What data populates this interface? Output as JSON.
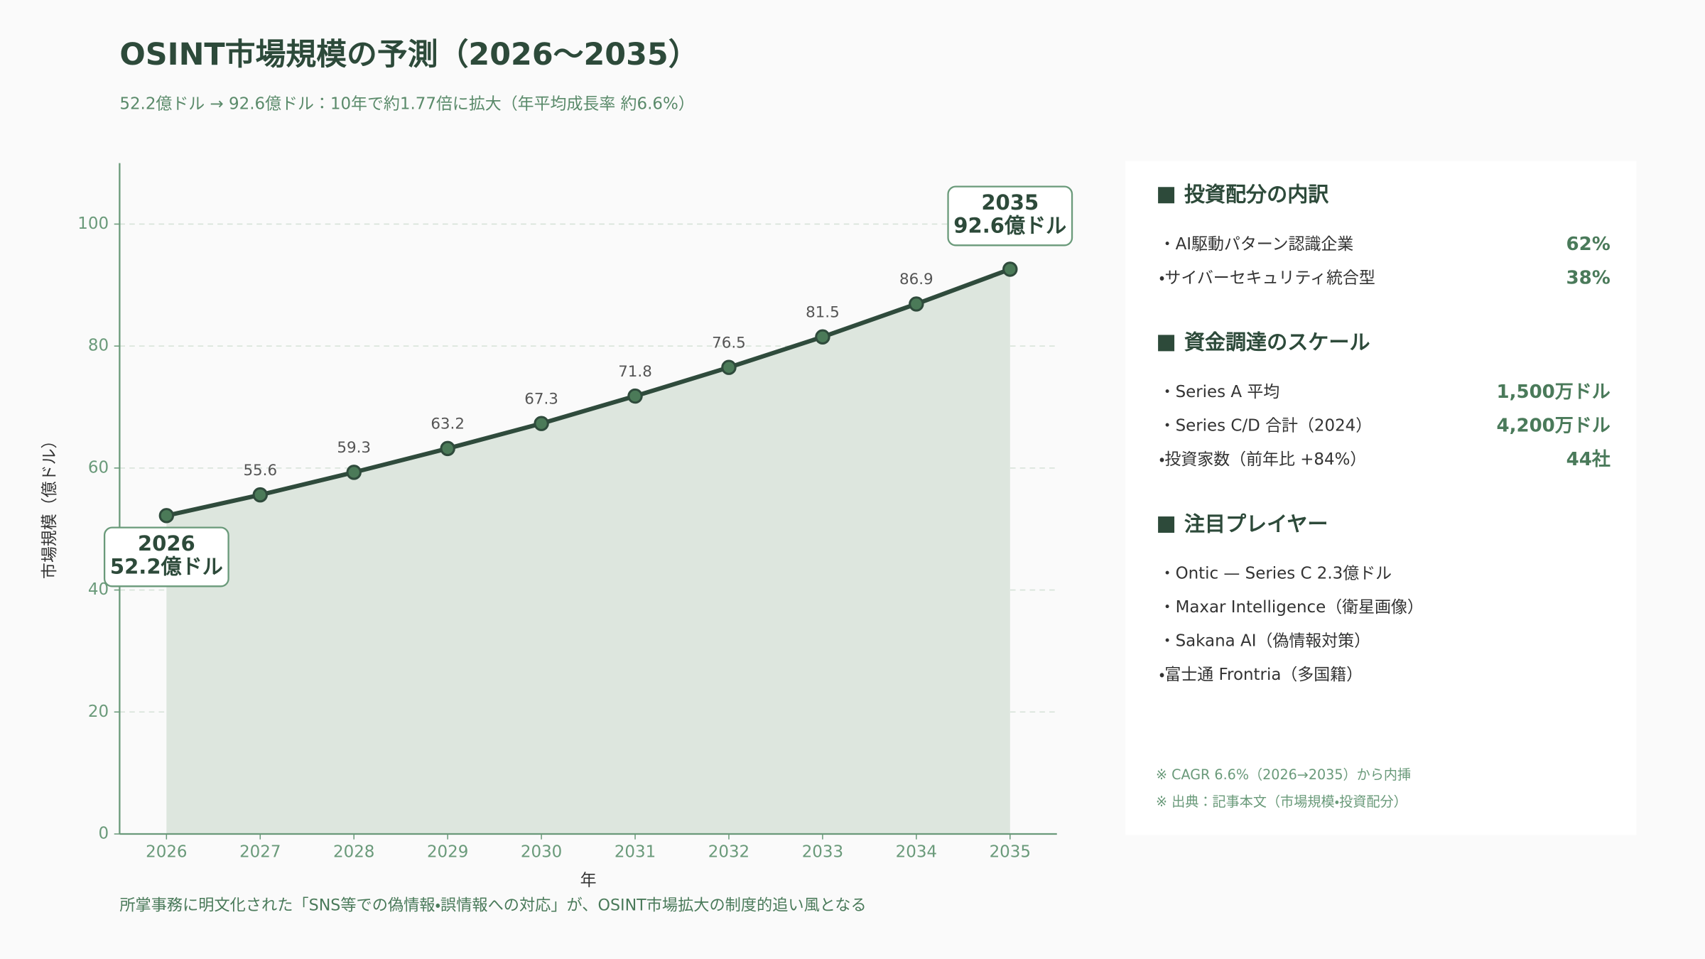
{
  "chart_data": {
    "type": "line",
    "title": "OSINT市場規模の予測（2026〜2035）",
    "subtitle": "52.2億ドル → 92.6億ドル：10年で約1.77倍に拡大（年平均成長率 約6.6%）",
    "x_label": "年",
    "y_label": "市場規模（億ドル）",
    "caption": "所掌事務に明文化された「SNS等での偽情報・誤情報への対応」が、OSINT市場拡大の制度的追い風となる",
    "categories": [
      "2026",
      "2027",
      "2028",
      "2029",
      "2030",
      "2031",
      "2032",
      "2033",
      "2034",
      "2035"
    ],
    "values": [
      52.2,
      55.6,
      59.3,
      63.2,
      67.3,
      71.8,
      76.5,
      81.5,
      86.9,
      92.6
    ],
    "value_labels": [
      "52.2億ドル",
      "55.6",
      "59.3",
      "63.2",
      "67.3",
      "71.8",
      "76.5",
      "81.5",
      "86.9",
      "92.6億ドル"
    ],
    "color": "#2f4b3c",
    "fill": "#dde6de",
    "marker_color": "#4b7a58",
    "ylim": [
      0,
      110
    ],
    "yticks": [
      0,
      20,
      40,
      60,
      80,
      100
    ],
    "grid": true
  },
  "panel": {
    "sections": [
      {
        "heading": "投資配分の内訳",
        "items": [
          {
            "label": "・AI駆動パターン認識企業",
            "value": "62%"
          },
          {
            "label": "・サイバーセキュリティ統合型",
            "value": "38%"
          }
        ]
      },
      {
        "heading": "資金調達のスケール",
        "items": [
          {
            "label": "・Series A 平均",
            "value": "1,500万ドル"
          },
          {
            "label": "・Series C/D 合計（2024）",
            "value": "4,200万ドル"
          },
          {
            "label": "・投資家数（前年比 +84%）",
            "value": "44社"
          }
        ]
      },
      {
        "heading": "注目プレイヤー",
        "items": [
          {
            "label": "・Ontic — Series C 2.3億ドル"
          },
          {
            "label": "・Maxar Intelligence（衛星画像）"
          },
          {
            "label": "・Sakana AI（偽情報対策）"
          },
          {
            "label": "・富士通 Frontria（多国籍）"
          }
        ]
      }
    ],
    "notes": [
      "※ CAGR 6.6%（2026→2035）から内挿",
      "※ 出典：記事本文（市場規模・投資配分）"
    ]
  }
}
